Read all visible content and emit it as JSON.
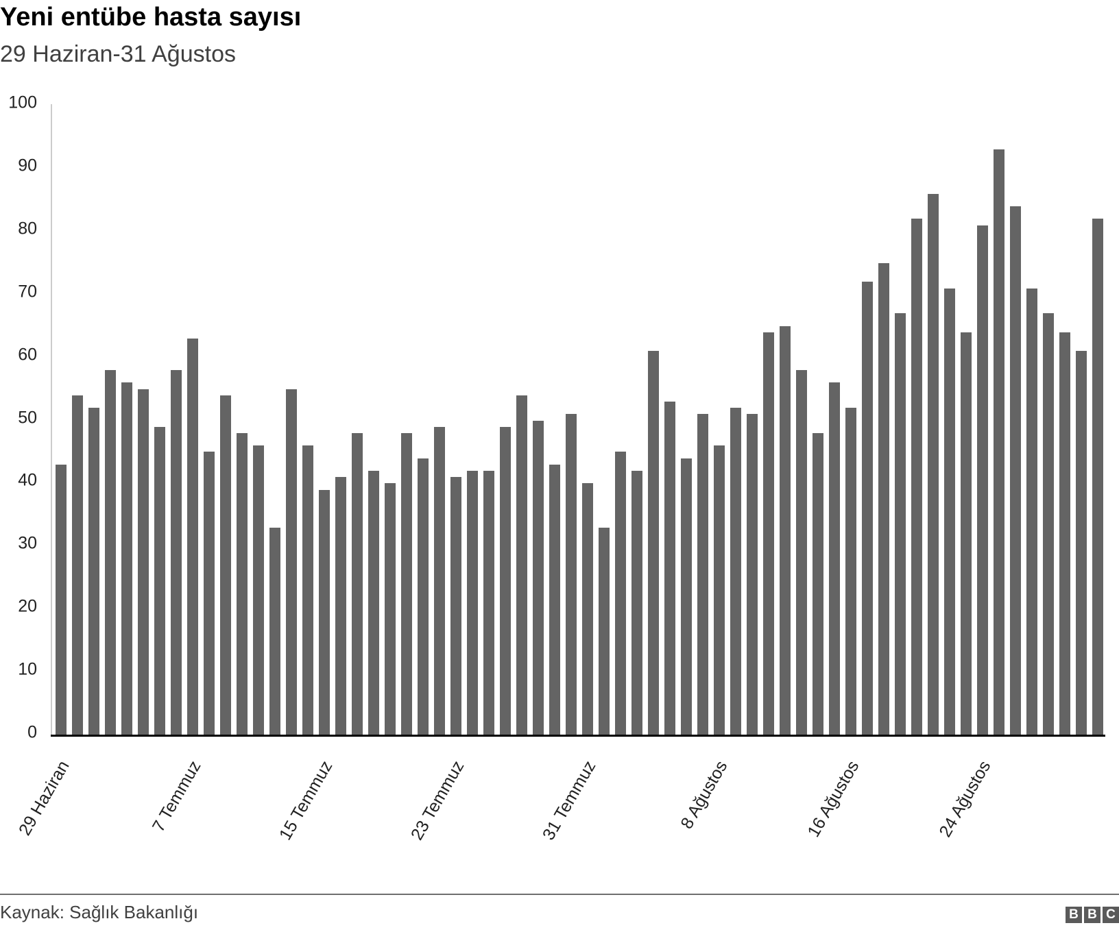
{
  "header": {
    "title": "Yeni entübe hasta sayısı",
    "subtitle": "29 Haziran-31 Ağustos"
  },
  "footer": {
    "source": "Kaynak: Sağlık Bakanlığı",
    "logo": [
      "B",
      "B",
      "C"
    ]
  },
  "colors": {
    "bar": "#646464",
    "baseline": "#000000",
    "axis": "#cccccc"
  },
  "chart_data": {
    "type": "bar",
    "title": "Yeni entübe hasta sayısı",
    "subtitle": "29 Haziran-31 Ağustos",
    "xlabel": "",
    "ylabel": "",
    "ylim": [
      0,
      100
    ],
    "yticks": [
      0,
      10,
      20,
      30,
      40,
      50,
      60,
      70,
      80,
      90,
      100
    ],
    "grid": false,
    "legend": null,
    "x_tick_labels": [
      {
        "index": 0,
        "label": "29 Haziran"
      },
      {
        "index": 8,
        "label": "7 Temmuz"
      },
      {
        "index": 16,
        "label": "15 Temmuz"
      },
      {
        "index": 24,
        "label": "23 Temmuz"
      },
      {
        "index": 32,
        "label": "31 Temmuz"
      },
      {
        "index": 40,
        "label": "8 Ağustos"
      },
      {
        "index": 48,
        "label": "16 Ağustos"
      },
      {
        "index": 56,
        "label": "24 Ağustos"
      }
    ],
    "categories": [
      "29 Haziran",
      "30 Haziran",
      "1 Temmuz",
      "2 Temmuz",
      "3 Temmuz",
      "4 Temmuz",
      "5 Temmuz",
      "6 Temmuz",
      "7 Temmuz",
      "8 Temmuz",
      "9 Temmuz",
      "10 Temmuz",
      "11 Temmuz",
      "12 Temmuz",
      "13 Temmuz",
      "14 Temmuz",
      "15 Temmuz",
      "16 Temmuz",
      "17 Temmuz",
      "18 Temmuz",
      "19 Temmuz",
      "20 Temmuz",
      "21 Temmuz",
      "22 Temmuz",
      "23 Temmuz",
      "24 Temmuz",
      "25 Temmuz",
      "26 Temmuz",
      "27 Temmuz",
      "28 Temmuz",
      "29 Temmuz",
      "30 Temmuz",
      "31 Temmuz",
      "1 Ağustos",
      "2 Ağustos",
      "3 Ağustos",
      "4 Ağustos",
      "5 Ağustos",
      "6 Ağustos",
      "7 Ağustos",
      "8 Ağustos",
      "9 Ağustos",
      "10 Ağustos",
      "11 Ağustos",
      "12 Ağustos",
      "13 Ağustos",
      "14 Ağustos",
      "15 Ağustos",
      "16 Ağustos",
      "17 Ağustos",
      "18 Ağustos",
      "19 Ağustos",
      "20 Ağustos",
      "21 Ağustos",
      "22 Ağustos",
      "23 Ağustos",
      "24 Ağustos",
      "25 Ağustos",
      "26 Ağustos",
      "27 Ağustos",
      "28 Ağustos",
      "29 Ağustos",
      "30 Ağustos",
      "31 Ağustos"
    ],
    "values": [
      43,
      54,
      52,
      58,
      56,
      55,
      49,
      58,
      63,
      45,
      54,
      48,
      46,
      33,
      55,
      46,
      39,
      41,
      48,
      42,
      40,
      48,
      44,
      49,
      41,
      42,
      42,
      49,
      54,
      50,
      43,
      51,
      40,
      33,
      45,
      42,
      61,
      53,
      44,
      51,
      46,
      52,
      51,
      64,
      65,
      58,
      48,
      56,
      52,
      72,
      75,
      67,
      82,
      86,
      71,
      64,
      81,
      93,
      84,
      71,
      67,
      64,
      61,
      82
    ]
  }
}
